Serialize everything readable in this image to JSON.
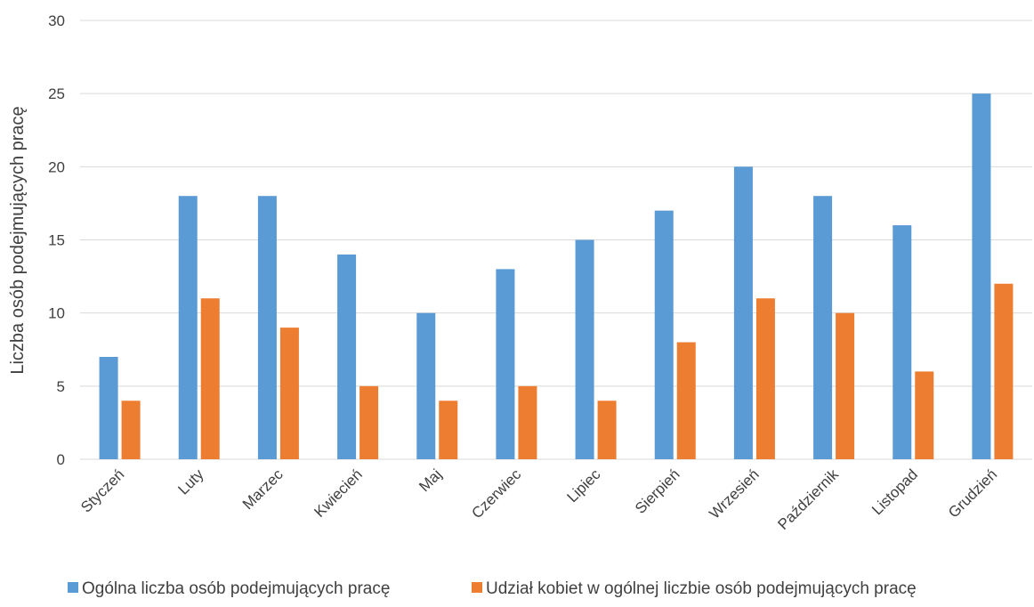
{
  "chart_data": {
    "type": "bar",
    "title": "",
    "xlabel": "",
    "ylabel": "Liczba osób podejmujących pracę",
    "ylim": [
      0,
      30
    ],
    "yticks": [
      0,
      5,
      10,
      15,
      20,
      25,
      30
    ],
    "grid": true,
    "legend_position": "bottom",
    "categories": [
      "Styczeń",
      "Luty",
      "Marzec",
      "Kwiecień",
      "Maj",
      "Czerwiec",
      "Lipiec",
      "Sierpień",
      "Wrzesień",
      "Październik",
      "Listopad",
      "Grudzień"
    ],
    "series": [
      {
        "name": "Ogólna liczba osób podejmujących pracę",
        "color": "#5b9bd5",
        "values": [
          7,
          18,
          18,
          14,
          10,
          13,
          15,
          17,
          20,
          18,
          16,
          25
        ]
      },
      {
        "name": "Udział kobiet w ogólnej liczbie osób podejmujących pracę",
        "color": "#ed7d31",
        "values": [
          4,
          11,
          9,
          5,
          4,
          5,
          4,
          8,
          11,
          10,
          6,
          12
        ]
      }
    ]
  }
}
